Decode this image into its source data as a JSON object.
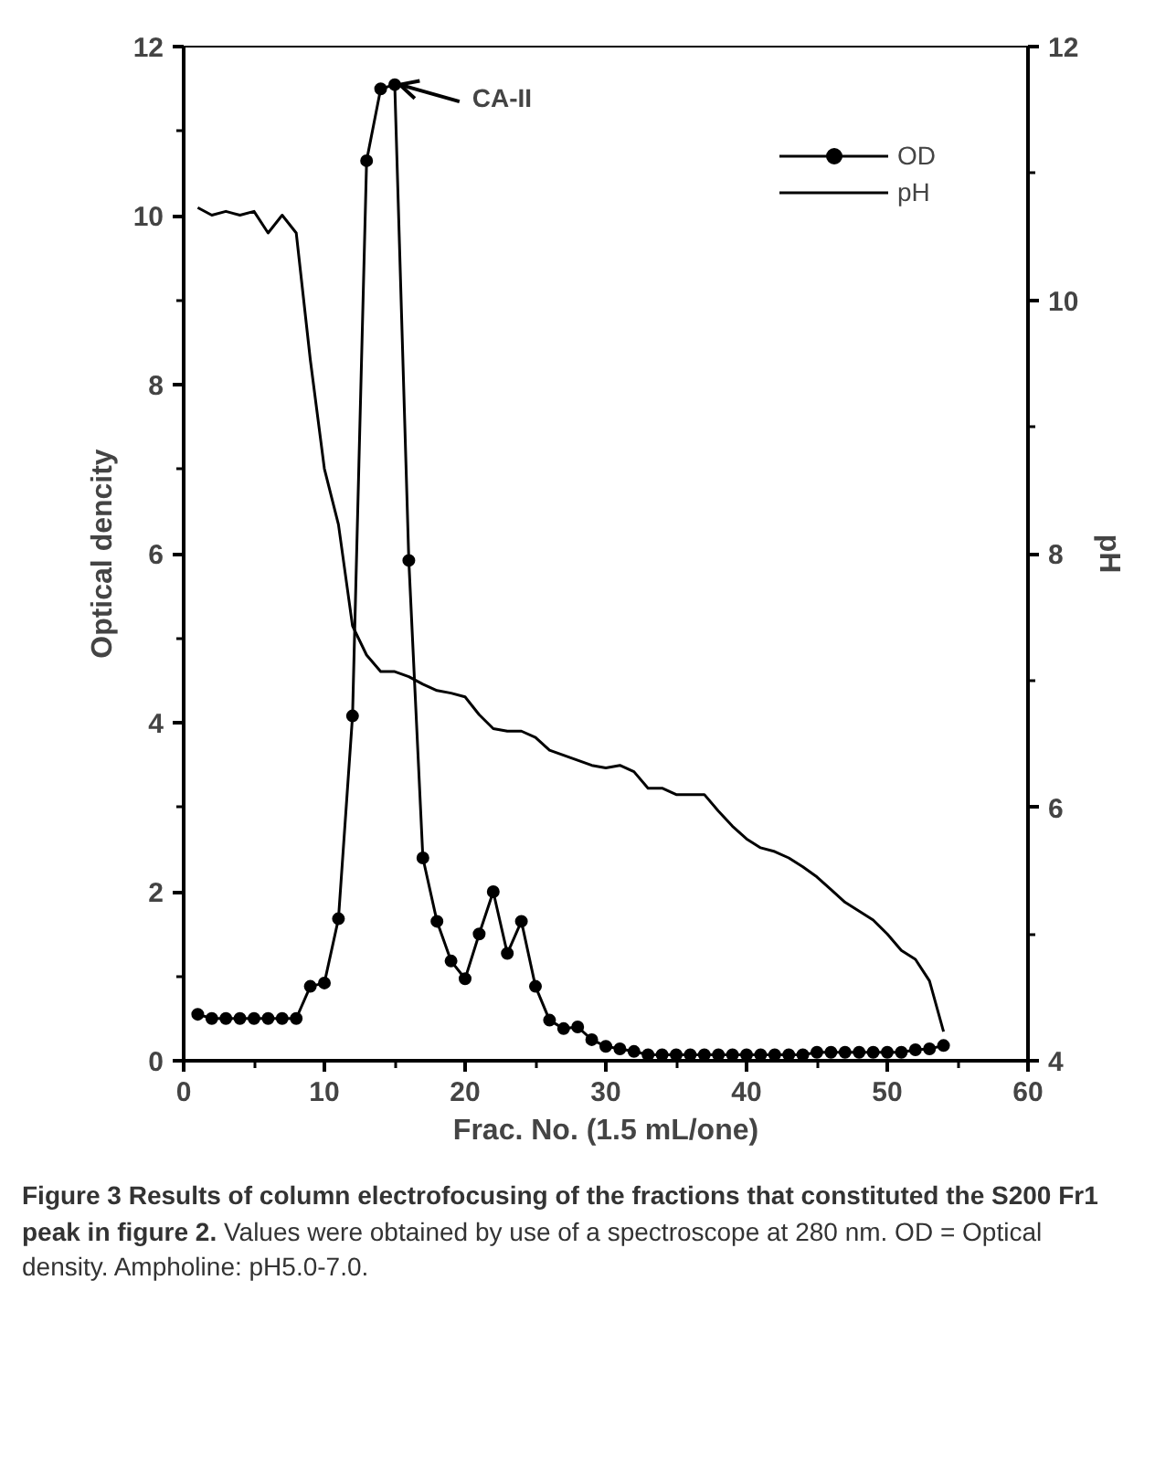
{
  "chart_data": {
    "type": "line",
    "title": "Figure 3 Results of column electrofocusing of the fractions that constituted the S200 Fr1 peak in figure 2.",
    "xlabel": "Frac. No. (1.5 mL/one)",
    "ylabel": "Optical dencity",
    "y2label": "pH",
    "x": [
      1,
      2,
      3,
      4,
      5,
      6,
      7,
      8,
      9,
      10,
      11,
      12,
      13,
      14,
      15,
      16,
      17,
      18,
      19,
      20,
      21,
      22,
      23,
      24,
      25,
      26,
      27,
      28,
      29,
      30,
      31,
      32,
      33,
      34,
      35,
      36,
      37,
      38,
      39,
      40,
      41,
      42,
      43,
      44,
      45,
      46,
      47,
      48,
      49,
      50,
      51,
      52,
      53,
      54
    ],
    "series": [
      {
        "name": "OD",
        "color": "#000000",
        "marker": "circle",
        "values": [
          0.55,
          0.5,
          0.5,
          0.5,
          0.5,
          0.5,
          0.5,
          0.5,
          0.88,
          0.92,
          1.68,
          4.08,
          10.65,
          11.5,
          11.55,
          5.92,
          2.4,
          1.65,
          1.18,
          0.97,
          1.5,
          2.0,
          1.27,
          1.65,
          0.88,
          0.48,
          0.38,
          0.4,
          0.25,
          0.17,
          0.14,
          0.11,
          0.07,
          0.07,
          0.07,
          0.07,
          0.07,
          0.07,
          0.07,
          0.07,
          0.07,
          0.07,
          0.07,
          0.07,
          0.1,
          0.1,
          0.1,
          0.1,
          0.1,
          0.1,
          0.1,
          0.13,
          0.14,
          0.18
        ]
      },
      {
        "name": "pH",
        "color": "#000000",
        "marker": "none",
        "axis": "y2",
        "values": [
          10.73,
          10.67,
          10.7,
          10.67,
          10.7,
          10.53,
          10.67,
          10.53,
          9.53,
          8.67,
          8.23,
          7.43,
          7.2,
          7.07,
          7.07,
          7.03,
          6.97,
          6.92,
          6.9,
          6.87,
          6.73,
          6.62,
          6.6,
          6.6,
          6.55,
          6.45,
          6.41,
          6.37,
          6.33,
          6.31,
          6.33,
          6.28,
          6.15,
          6.15,
          6.1,
          6.1,
          6.1,
          5.97,
          5.85,
          5.75,
          5.68,
          5.65,
          5.6,
          5.53,
          5.45,
          5.35,
          5.25,
          5.18,
          5.11,
          5.0,
          4.87,
          4.8,
          4.63,
          4.23
        ]
      }
    ],
    "xlim": [
      0,
      60
    ],
    "xticks": [
      0,
      10,
      20,
      30,
      40,
      50,
      60
    ],
    "ylim": [
      0,
      12
    ],
    "yticks": [
      0,
      2,
      4,
      6,
      8,
      10,
      12
    ],
    "y2lim": [
      4,
      12
    ],
    "y2ticks": [
      4,
      6,
      8,
      10,
      12
    ],
    "annotations": [
      {
        "text": "CA-II",
        "x": 15,
        "y": 11.55
      },
      "Values were obtained by use of a spectroscope at 280 nm. OD = Optical density. Ampholine: pH5.0-7.0."
    ],
    "legend": "top right",
    "grid": false,
    "line_style": "solid"
  }
}
